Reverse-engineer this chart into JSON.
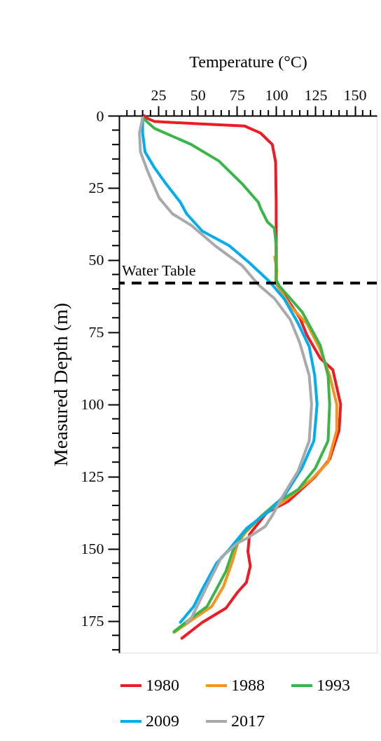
{
  "chart_data": {
    "type": "line",
    "xlabel": "Temperature (°C)",
    "ylabel": "Measured Depth (m)",
    "xlim": [
      0,
      164
    ],
    "ylim": [
      186,
      0
    ],
    "xticks": [
      {
        "value": 5,
        "label": null
      },
      {
        "value": 10,
        "label": null
      },
      {
        "value": 15,
        "label": null
      },
      {
        "value": 20,
        "label": null
      },
      25,
      {
        "value": 30,
        "label": null
      },
      {
        "value": 35,
        "label": null
      },
      {
        "value": 40,
        "label": null
      },
      {
        "value": 45,
        "label": null
      },
      50,
      {
        "value": 55,
        "label": null
      },
      {
        "value": 60,
        "label": null
      },
      {
        "value": 65,
        "label": null
      },
      {
        "value": 70,
        "label": null
      },
      75,
      {
        "value": 80,
        "label": null
      },
      {
        "value": 85,
        "label": null
      },
      {
        "value": 90,
        "label": null
      },
      {
        "value": 95,
        "label": null
      },
      100,
      {
        "value": 105,
        "label": null
      },
      {
        "value": 110,
        "label": null
      },
      {
        "value": 115,
        "label": null
      },
      {
        "value": 120,
        "label": null
      },
      125,
      {
        "value": 130,
        "label": null
      },
      {
        "value": 135,
        "label": null
      },
      {
        "value": 140,
        "label": null
      },
      {
        "value": 145,
        "label": null
      },
      150,
      {
        "value": 155,
        "label": null
      },
      {
        "value": 160,
        "label": null
      }
    ],
    "yticks": [
      0,
      {
        "value": 5,
        "label": null
      },
      {
        "value": 10,
        "label": null
      },
      {
        "value": 15,
        "label": null
      },
      {
        "value": 20,
        "label": null
      },
      25,
      {
        "value": 30,
        "label": null
      },
      {
        "value": 35,
        "label": null
      },
      {
        "value": 40,
        "label": null
      },
      {
        "value": 45,
        "label": null
      },
      50,
      {
        "value": 55,
        "label": null
      },
      {
        "value": 60,
        "label": null
      },
      {
        "value": 65,
        "label": null
      },
      {
        "value": 70,
        "label": null
      },
      75,
      {
        "value": 80,
        "label": null
      },
      {
        "value": 85,
        "label": null
      },
      {
        "value": 90,
        "label": null
      },
      {
        "value": 95,
        "label": null
      },
      100,
      {
        "value": 105,
        "label": null
      },
      {
        "value": 110,
        "label": null
      },
      {
        "value": 115,
        "label": null
      },
      {
        "value": 120,
        "label": null
      },
      125,
      {
        "value": 130,
        "label": null
      },
      {
        "value": 135,
        "label": null
      },
      {
        "value": 140,
        "label": null
      },
      {
        "value": 145,
        "label": null
      },
      150,
      {
        "value": 155,
        "label": null
      },
      {
        "value": 160,
        "label": null
      },
      {
        "value": 165,
        "label": null
      },
      {
        "value": 170,
        "label": null
      },
      175,
      {
        "value": 180,
        "label": null
      },
      {
        "value": 185,
        "label": null
      }
    ],
    "grid": false,
    "legend": "bottom",
    "marker": "none",
    "line_style": "solid",
    "ref_lines": [
      {
        "axis": "y",
        "value": 58,
        "label": "Water Table",
        "color": "#000000",
        "line_style": "dashed"
      }
    ],
    "series": [
      {
        "name": "1980",
        "color": "#ed1c24",
        "x": [
          16,
          17,
          22.5,
          50,
          80,
          90,
          97.5,
          99.6,
          100,
          100,
          100.5,
          105,
          115,
          119.5,
          128,
          136,
          141,
          140,
          134,
          124,
          107.5,
          94,
          83,
          82,
          83.5,
          81,
          75.5,
          68,
          53,
          40
        ],
        "values": [
          0,
          0.7,
          2,
          2.8,
          3.6,
          6,
          10,
          16,
          30,
          57,
          58.6,
          62,
          70,
          76,
          84,
          88,
          100,
          109,
          119,
          125.5,
          133.6,
          137.5,
          145,
          151,
          156,
          161.7,
          165,
          170.6,
          175.5,
          181
        ]
      },
      {
        "name": "1988",
        "color": "#f7941d",
        "x": [
          99,
          100.5,
          99.6,
          102,
          109,
          119.5,
          128,
          134,
          138.5,
          138.5,
          133,
          122.5,
          105,
          93,
          81,
          75.5,
          72.5,
          66.5,
          59,
          46,
          35
        ],
        "values": [
          49,
          53.7,
          57,
          60,
          66,
          72,
          81,
          90,
          100,
          109,
          120,
          126,
          133.6,
          137.5,
          144,
          148,
          153.7,
          163,
          170,
          174.8,
          179
        ]
      },
      {
        "name": "1993",
        "color": "#39b54a",
        "x": [
          16,
          22.5,
          46,
          63.5,
          78.5,
          88.6,
          90,
          94.4,
          98.8,
          100,
          100,
          102,
          116.5,
          128,
          133,
          134,
          133,
          125,
          114,
          100.5,
          90,
          78.5,
          72.5,
          68,
          62,
          56,
          46,
          35
        ],
        "values": [
          1.2,
          4.4,
          10,
          15.7,
          23.7,
          30,
          32,
          36.8,
          39,
          45,
          57,
          59,
          68,
          79.5,
          90,
          100,
          112.6,
          122,
          129.5,
          134,
          139,
          145,
          150.6,
          157.8,
          164,
          170,
          174,
          178.7
        ]
      },
      {
        "name": "2009",
        "color": "#00aeef",
        "x": [
          15,
          15,
          16.5,
          22.5,
          30,
          39,
          43,
          53,
          70,
          83,
          96,
          105,
          114,
          121,
          124.5,
          126,
          124,
          116.4,
          106,
          96,
          81,
          69.5,
          62,
          53,
          47.5,
          39
        ],
        "values": [
          0.7,
          6,
          12.5,
          18,
          23.7,
          30,
          34,
          40,
          45,
          51,
          57.6,
          63.4,
          72,
          80,
          90,
          100,
          112.6,
          122,
          131,
          136.8,
          143,
          150.6,
          155,
          164,
          170,
          175.5
        ]
      },
      {
        "name": "2017",
        "color": "#a7a9ac",
        "x": [
          15,
          13,
          13.6,
          18,
          25.5,
          34,
          46,
          61,
          78.5,
          88.6,
          99,
          109,
          115,
          121,
          122.5,
          121,
          114,
          105,
          97.5,
          93,
          81,
          75.5,
          65,
          55,
          46,
          43
        ],
        "values": [
          0.7,
          6,
          12.5,
          19,
          28.5,
          34,
          38,
          45,
          52,
          58.5,
          63.4,
          70.7,
          78.7,
          90,
          100,
          112.6,
          123,
          131,
          138.5,
          142.3,
          146.5,
          148,
          153,
          164,
          174,
          175.5
        ]
      }
    ]
  }
}
